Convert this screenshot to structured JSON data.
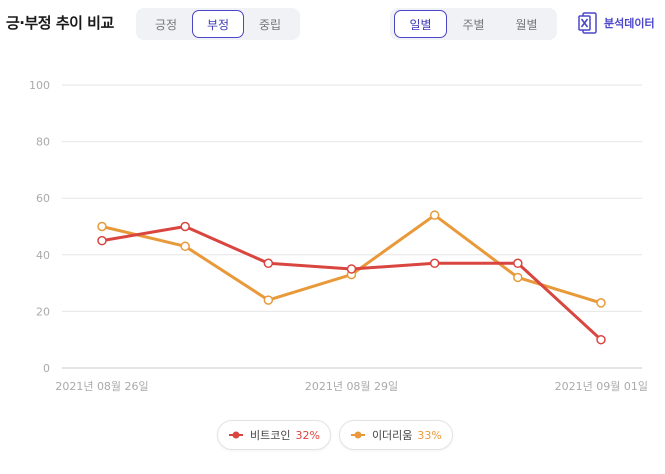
{
  "header": {
    "title": "긍·부정 추이 비교",
    "sentiment_tabs": [
      {
        "label": "긍정",
        "active": false
      },
      {
        "label": "부정",
        "active": true
      },
      {
        "label": "중립",
        "active": false
      }
    ],
    "period_tabs": [
      {
        "label": "일별",
        "active": true
      },
      {
        "label": "주별",
        "active": false
      },
      {
        "label": "월별",
        "active": false
      }
    ],
    "export_label": "분석데이터",
    "export_icon": "excel-icon"
  },
  "colors": {
    "accent": "#4b45c9",
    "bitcoin": "#d9453f",
    "ethereum": "#e89a3a",
    "grid": "#e6e6e6"
  },
  "chart_data": {
    "type": "line",
    "x_ticks": [
      "2021년 08월 26일",
      "2021년 08월 29일",
      "2021년 09월 01일"
    ],
    "y_ticks": [
      "0",
      "20",
      "40",
      "60",
      "80",
      "100"
    ],
    "ylim": [
      0,
      100
    ],
    "x": [
      "2021-08-26",
      "2021-08-27",
      "2021-08-28",
      "2021-08-29",
      "2021-08-30",
      "2021-08-31",
      "2021-09-01"
    ],
    "series": [
      {
        "name": "비트코인",
        "values": [
          45,
          50,
          37,
          35,
          37,
          37,
          10
        ]
      },
      {
        "name": "이더리움",
        "values": [
          50,
          43,
          24,
          33,
          54,
          32,
          23
        ]
      }
    ]
  },
  "legend": [
    {
      "name": "비트코인",
      "pct": "32%"
    },
    {
      "name": "이더리움",
      "pct": "33%"
    }
  ]
}
